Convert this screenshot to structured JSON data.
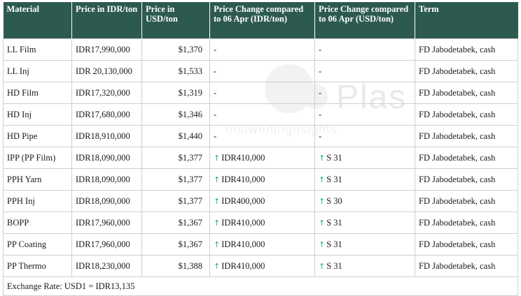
{
  "watermark": {
    "brand": "Plas",
    "tagline": "nnoweningnsights"
  },
  "table": {
    "headers": {
      "material": "Material",
      "price_idr": "Price in IDR/ton",
      "price_usd": "Price in USD/ton",
      "change_idr": "Price Change compared to 06 Apr (IDR/ton)",
      "change_usd": "Price Change compared to 06 Apr (USD/ton)",
      "term": "Term"
    },
    "up_arrow": "↑",
    "rows": [
      {
        "material": "LL Film",
        "price_idr": "IDR17,990,000",
        "price_usd": "$1,370",
        "change_idr": "-",
        "change_usd": "-",
        "term": "FD Jabodetabek, cash",
        "up": false
      },
      {
        "material": "LL Inj",
        "price_idr": "IDR 20,130,000",
        "price_usd": "$1,533",
        "change_idr": "-",
        "change_usd": "-",
        "term": "FD Jabodetabek, cash",
        "up": false
      },
      {
        "material": "HD Film",
        "price_idr": "IDR17,320,000",
        "price_usd": "$1,319",
        "change_idr": "-",
        "change_usd": "-",
        "term": "FD Jabodetabek, cash",
        "up": false
      },
      {
        "material": "HD Inj",
        "price_idr": "IDR17,680,000",
        "price_usd": "$1,346",
        "change_idr": "-",
        "change_usd": "-",
        "term": "FD Jabodetabek, cash",
        "up": false
      },
      {
        "material": "HD Pipe",
        "price_idr": "IDR18,910,000",
        "price_usd": "$1,440",
        "change_idr": "-",
        "change_usd": "-",
        "term": "FD Jabodetabek, cash",
        "up": false
      },
      {
        "material": "IPP (PP Film)",
        "price_idr": "IDR18,090,000",
        "price_usd": "$1,377",
        "change_idr": "IDR410,000",
        "change_usd": "S 31",
        "term": "FD Jabodetabek, cash",
        "up": true
      },
      {
        "material": "PPH Yarn",
        "price_idr": "IDR18,090,000",
        "price_usd": "$1,377",
        "change_idr": "IDR410,000",
        "change_usd": "S 31",
        "term": "FD Jabodetabek, cash",
        "up": true
      },
      {
        "material": "PPH Inj",
        "price_idr": "IDR18,090,000",
        "price_usd": "$1,377",
        "change_idr": "IDR400,000",
        "change_usd": "S 30",
        "term": "FD Jabodetabek, cash",
        "up": true
      },
      {
        "material": "BOPP",
        "price_idr": "IDR17,960,000",
        "price_usd": "$1,367",
        "change_idr": "IDR410,000",
        "change_usd": "S 31",
        "term": "FD Jabodetabek, cash",
        "up": true
      },
      {
        "material": "PP Coating",
        "price_idr": "IDR17,960,000",
        "price_usd": "$1,367",
        "change_idr": "IDR410,000",
        "change_usd": "S 31",
        "term": "FD Jabodetabek, cash",
        "up": true
      },
      {
        "material": "PP Thermo",
        "price_idr": "IDR18,230,000",
        "price_usd": "$1,388",
        "change_idr": "IDR410,000",
        "change_usd": "S 31",
        "term": "FD Jabodetabek, cash",
        "up": true
      }
    ],
    "footer": "Exchange Rate: USD1 = IDR13,135"
  },
  "colors": {
    "header_bg": "#2d5a50",
    "header_text": "#ffffff",
    "arrow": "#1fae7a",
    "border": "#cfcfcf"
  }
}
